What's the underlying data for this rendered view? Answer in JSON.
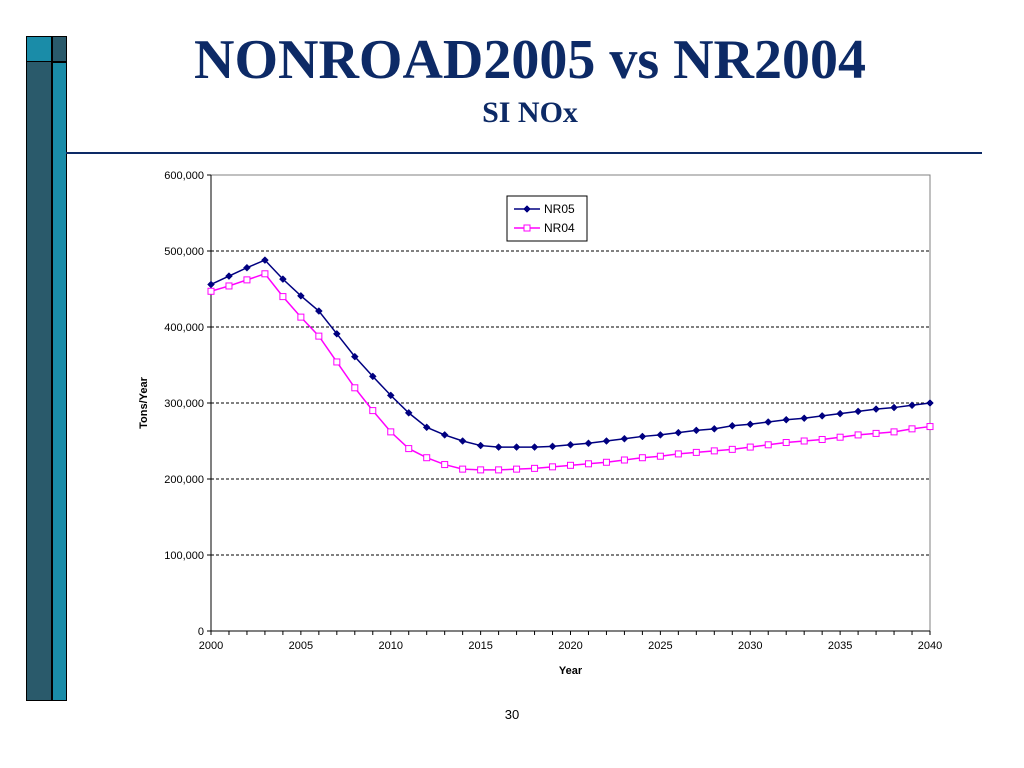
{
  "slide": {
    "title": "NONROAD2005 vs NR2004",
    "subtitle": "SI NOx",
    "page_number": "30"
  },
  "colors": {
    "title": "#0d2a66",
    "sidebar_dark": "#2a5a6b",
    "sidebar_teal": "#1a8ca8",
    "nr05": "#000080",
    "nr04": "#ff00ff"
  },
  "chart_data": {
    "type": "line",
    "xlabel": "Year",
    "ylabel": "Tons/Year",
    "xlim": [
      2000,
      2040
    ],
    "ylim": [
      0,
      600000
    ],
    "x_ticks": [
      2000,
      2005,
      2010,
      2015,
      2020,
      2025,
      2030,
      2035,
      2040
    ],
    "y_ticks": [
      0,
      100000,
      200000,
      300000,
      400000,
      500000,
      600000
    ],
    "x_tick_labels": [
      "2000",
      "2005",
      "2010",
      "2015",
      "2020",
      "2025",
      "2030",
      "2035",
      "2040"
    ],
    "y_tick_labels": [
      "0",
      "100,000",
      "200,000",
      "300,000",
      "400,000",
      "500,000",
      "600,000"
    ],
    "grid": "horizontal dashed",
    "legend_position": "top-center",
    "x": [
      2000,
      2001,
      2002,
      2003,
      2004,
      2005,
      2006,
      2007,
      2008,
      2009,
      2010,
      2011,
      2012,
      2013,
      2014,
      2015,
      2016,
      2017,
      2018,
      2019,
      2020,
      2021,
      2022,
      2023,
      2024,
      2025,
      2026,
      2027,
      2028,
      2029,
      2030,
      2031,
      2032,
      2033,
      2034,
      2035,
      2036,
      2037,
      2038,
      2039,
      2040
    ],
    "series": [
      {
        "name": "NR05",
        "marker": "diamond",
        "color": "#000080",
        "values": [
          456000,
          467000,
          478000,
          488000,
          463000,
          441000,
          421000,
          391000,
          361000,
          335000,
          310000,
          287000,
          268000,
          258000,
          250000,
          244000,
          242000,
          242000,
          242000,
          243000,
          245000,
          247000,
          250000,
          253000,
          256000,
          258000,
          261000,
          264000,
          266000,
          270000,
          272000,
          275000,
          278000,
          280000,
          283000,
          286000,
          289000,
          292000,
          294000,
          297000,
          300000
        ]
      },
      {
        "name": "NR04",
        "marker": "square",
        "color": "#ff00ff",
        "values": [
          447000,
          454000,
          462000,
          470000,
          440000,
          413000,
          388000,
          354000,
          320000,
          290000,
          262000,
          240000,
          228000,
          219000,
          213000,
          212000,
          212000,
          213000,
          214000,
          216000,
          218000,
          220000,
          222000,
          225000,
          228000,
          230000,
          233000,
          235000,
          237000,
          239000,
          242000,
          245000,
          248000,
          250000,
          252000,
          255000,
          258000,
          260000,
          262000,
          266000,
          269000
        ]
      }
    ]
  }
}
